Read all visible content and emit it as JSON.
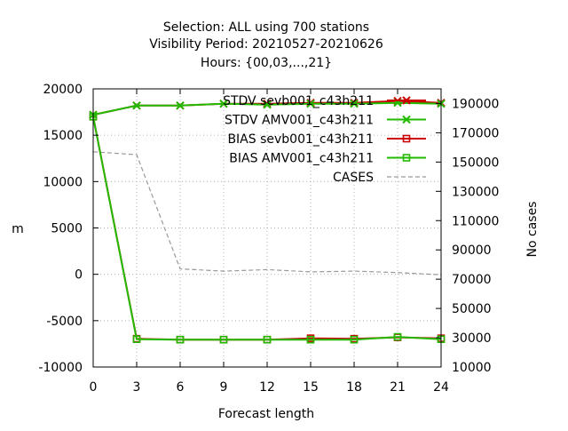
{
  "chart_data": {
    "type": "line",
    "title_lines": [
      "Selection: ALL using   700 stations",
      "Visibility   Period: 20210527-20210626",
      "Hours: {00,03,...,21}"
    ],
    "xlabel": "Forecast length",
    "ylabel": "m",
    "y2label": "No cases",
    "x": [
      0,
      3,
      6,
      9,
      12,
      15,
      18,
      21,
      24
    ],
    "xlim": [
      0,
      24
    ],
    "ylim": [
      -10000,
      20000
    ],
    "y2lim": [
      10000,
      200000
    ],
    "xticks": [
      "0",
      "3",
      "6",
      "9",
      "12",
      "15",
      "18",
      "21",
      "24"
    ],
    "yticks": [
      "-10000",
      "-5000",
      "0",
      "5000",
      "10000",
      "15000",
      "20000"
    ],
    "y2ticks": [
      "10000",
      "30000",
      "50000",
      "70000",
      "90000",
      "110000",
      "130000",
      "150000",
      "170000",
      "190000"
    ],
    "grid": true,
    "legend_position": "top-right",
    "series": [
      {
        "name": "STDV sevb001_c43h211",
        "axis": "y",
        "color": "#cc0000",
        "marker": "x",
        "dash": "solid",
        "values": [
          17200,
          18200,
          18200,
          18400,
          18400,
          18500,
          18500,
          18700,
          18500
        ]
      },
      {
        "name": "STDV AMV001_c43h211",
        "axis": "y",
        "color": "#22bb00",
        "marker": "x",
        "dash": "solid",
        "values": [
          17200,
          18200,
          18200,
          18400,
          18300,
          18400,
          18400,
          18500,
          18400
        ]
      },
      {
        "name": "BIAS sevb001_c43h211",
        "axis": "y",
        "color": "#cc0000",
        "marker": "square",
        "dash": "solid",
        "values": [
          17000,
          -6950,
          -7050,
          -7050,
          -7050,
          -6900,
          -6950,
          -6800,
          -6900
        ]
      },
      {
        "name": "BIAS AMV001_c43h211",
        "axis": "y",
        "color": "#22bb00",
        "marker": "square",
        "dash": "solid",
        "values": [
          17000,
          -7000,
          -7050,
          -7050,
          -7050,
          -7050,
          -7050,
          -6750,
          -7000
        ]
      },
      {
        "name": "CASES",
        "axis": "y2",
        "color": "#999999",
        "marker": "none",
        "dash": "dashed",
        "values": [
          157000,
          155000,
          77000,
          75500,
          76500,
          75000,
          75500,
          74500,
          73000
        ]
      }
    ]
  }
}
